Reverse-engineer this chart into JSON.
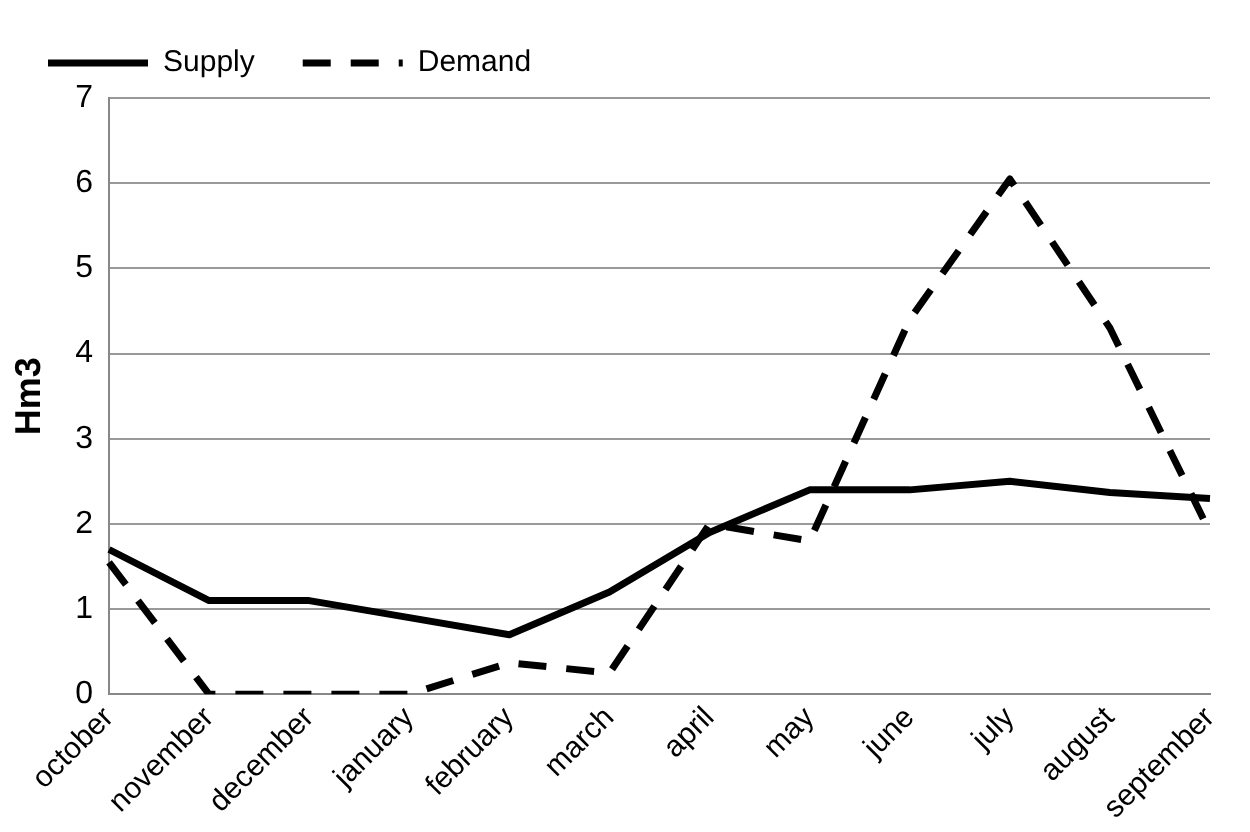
{
  "chart_data": {
    "type": "line",
    "ylabel": "Hm3",
    "categories": [
      "october",
      "november",
      "december",
      "january",
      "february",
      "march",
      "april",
      "may",
      "june",
      "july",
      "august",
      "september"
    ],
    "series": [
      {
        "name": "Supply",
        "color": "#000000",
        "line_style": "solid",
        "values": [
          1.7,
          1.1,
          1.1,
          0.9,
          0.7,
          1.2,
          1.9,
          2.4,
          2.4,
          2.5,
          2.37,
          2.3
        ]
      },
      {
        "name": "Demand",
        "color": "#000000",
        "line_style": "dashed",
        "values": [
          1.55,
          0,
          0,
          0,
          0.37,
          0.25,
          2.0,
          1.8,
          4.4,
          6.05,
          4.3,
          1.9
        ]
      }
    ],
    "ylim": [
      0,
      7
    ],
    "yticks": [
      0,
      1,
      2,
      3,
      4,
      5,
      6,
      7
    ],
    "grid": "y",
    "legend": "top left",
    "marker": "none"
  }
}
